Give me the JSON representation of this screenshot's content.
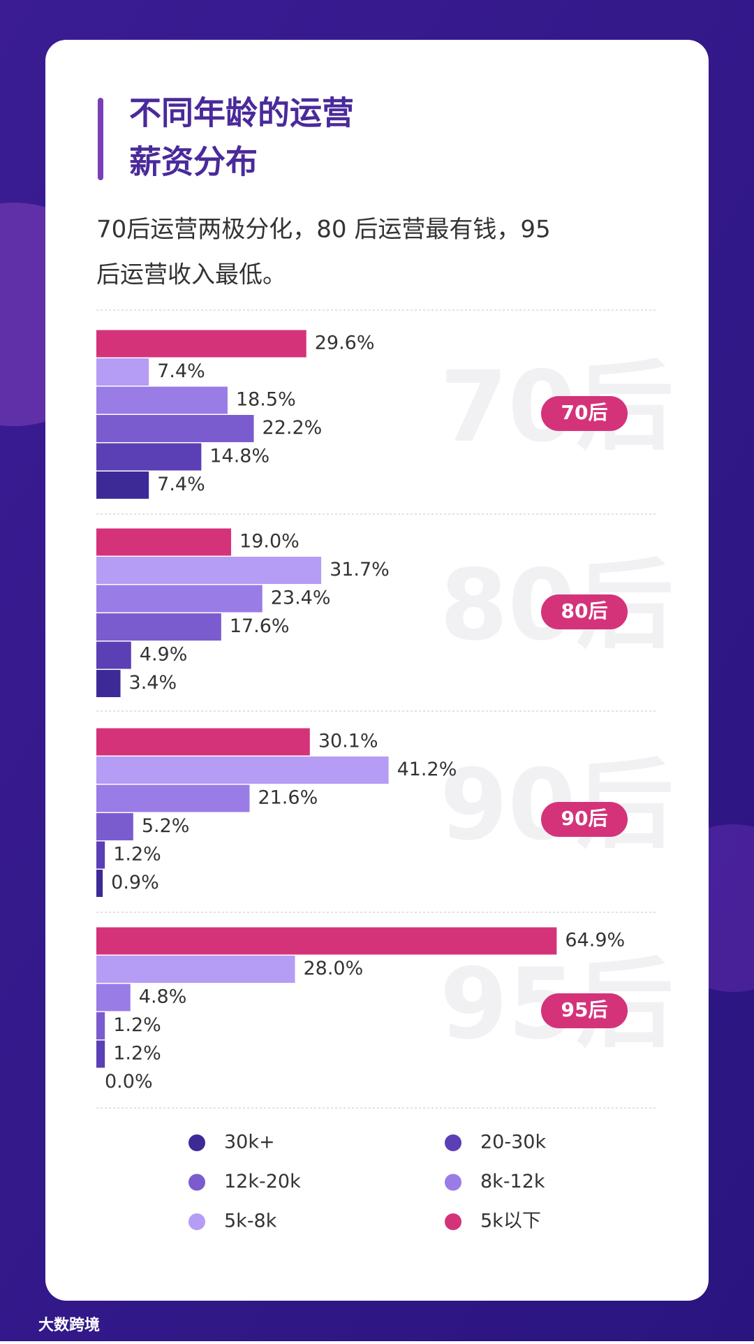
{
  "header": {
    "title_lines": [
      "不同年龄的运营",
      "薪资分布"
    ],
    "subtitle_lines": [
      "70后运营两极分化，80 后运营最有钱，95",
      "后运营收入最低。"
    ]
  },
  "chart_data": [
    {
      "type": "bar",
      "orientation": "horizontal",
      "title": "70后",
      "xlim": [
        0,
        80
      ],
      "values": [
        29.6,
        7.4,
        18.5,
        22.2,
        14.8,
        7.4
      ],
      "value_labels": [
        "29.6%",
        "7.4%",
        "18.5%",
        "22.2%",
        "14.8%",
        "7.4%"
      ],
      "colors": [
        "#d4337a",
        "#b59cf5",
        "#9a7ce6",
        "#7b5ccf",
        "#5b3fb5",
        "#3d2a97"
      ]
    },
    {
      "type": "bar",
      "orientation": "horizontal",
      "title": "80后",
      "xlim": [
        0,
        80
      ],
      "values": [
        19.0,
        31.7,
        23.4,
        17.6,
        4.9,
        3.4
      ],
      "value_labels": [
        "19.0%",
        "31.7%",
        "23.4%",
        "17.6%",
        "4.9%",
        "3.4%"
      ],
      "colors": [
        "#d4337a",
        "#b59cf5",
        "#9a7ce6",
        "#7b5ccf",
        "#5b3fb5",
        "#3d2a97"
      ]
    },
    {
      "type": "bar",
      "orientation": "horizontal",
      "title": "90后",
      "xlim": [
        0,
        80
      ],
      "values": [
        30.1,
        41.2,
        21.6,
        5.2,
        1.2,
        0.9
      ],
      "value_labels": [
        "30.1%",
        "41.2%",
        "21.6%",
        "5.2%",
        "1.2%",
        "0.9%"
      ],
      "colors": [
        "#d4337a",
        "#b59cf5",
        "#9a7ce6",
        "#7b5ccf",
        "#5b3fb5",
        "#3d2a97"
      ]
    },
    {
      "type": "bar",
      "orientation": "horizontal",
      "title": "95后",
      "xlim": [
        0,
        80
      ],
      "values": [
        64.9,
        28.0,
        4.8,
        1.2,
        1.2,
        0.0
      ],
      "value_labels": [
        "64.9%",
        "28.0%",
        "4.8%",
        "1.2%",
        "1.2%",
        "0.0%"
      ],
      "colors": [
        "#d4337a",
        "#b59cf5",
        "#9a7ce6",
        "#7b5ccf",
        "#5b3fb5",
        "#3d2a97"
      ]
    }
  ],
  "legend": {
    "items": [
      {
        "name": "30k+",
        "color": "#3d2a97"
      },
      {
        "name": "20-30k",
        "color": "#5b3fb5"
      },
      {
        "name": "12k-20k",
        "color": "#7b5ccf"
      },
      {
        "name": "8k-12k",
        "color": "#9a7ce6"
      },
      {
        "name": "5k-8k",
        "color": "#b59cf5"
      },
      {
        "name": "5k以下",
        "color": "#d4337a"
      }
    ]
  },
  "footer": {
    "brand": "大数跨境"
  }
}
